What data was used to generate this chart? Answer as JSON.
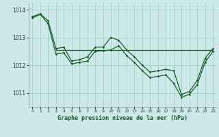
{
  "title": "Graphe pression niveau de la mer (hPa)",
  "bg_color": "#cce8e8",
  "grid_color": "#99ccbb",
  "line_color": "#1a5c2a",
  "xlim": [
    -0.5,
    23.5
  ],
  "ylim": [
    1010.5,
    1014.25
  ],
  "yticks": [
    1011,
    1012,
    1013,
    1014
  ],
  "xticks": [
    0,
    1,
    2,
    3,
    4,
    5,
    6,
    7,
    8,
    9,
    10,
    11,
    12,
    13,
    14,
    15,
    16,
    17,
    18,
    19,
    20,
    21,
    22,
    23
  ],
  "series_upper": [
    1013.75,
    1013.85,
    1013.6,
    1012.6,
    1012.65,
    1012.15,
    1012.2,
    1012.3,
    1012.65,
    1012.65,
    1013.0,
    1012.9,
    1012.55,
    1012.3,
    1012.0,
    1011.75,
    1011.8,
    1011.85,
    1011.8,
    1010.95,
    1011.05,
    1011.45,
    1012.25,
    1012.6
  ],
  "series_lower": [
    1013.7,
    1013.83,
    1013.5,
    1012.4,
    1012.45,
    1012.05,
    1012.1,
    1012.15,
    1012.5,
    1012.52,
    1012.55,
    1012.7,
    1012.35,
    1012.1,
    1011.8,
    1011.55,
    1011.6,
    1011.65,
    1011.35,
    1010.85,
    1010.95,
    1011.3,
    1012.1,
    1012.5
  ],
  "hline_x_start": 3,
  "hline_x_end": 23,
  "hline_y": 1012.55
}
